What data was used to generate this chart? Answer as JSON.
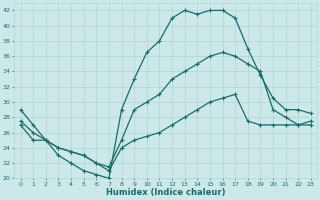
{
  "xlabel": "Humidex (Indice chaleur)",
  "background_color": "#cde8e8",
  "grid_color": "#aed4d4",
  "line_color": "#1a6b6b",
  "xlim": [
    -0.5,
    23.5
  ],
  "ylim": [
    20,
    43
  ],
  "xticks": [
    0,
    1,
    2,
    3,
    4,
    5,
    6,
    7,
    8,
    9,
    10,
    11,
    12,
    13,
    14,
    15,
    16,
    17,
    18,
    19,
    20,
    21,
    22,
    23
  ],
  "yticks": [
    20,
    22,
    24,
    26,
    28,
    30,
    32,
    34,
    36,
    38,
    40,
    42
  ],
  "line1_x": [
    0,
    1,
    2,
    3,
    4,
    5,
    6,
    7,
    8,
    9,
    10,
    11,
    12,
    13,
    14,
    15,
    16,
    17,
    18,
    19,
    20,
    21,
    22,
    23
  ],
  "line1_y": [
    29,
    27,
    25,
    23,
    22,
    21,
    20.5,
    20,
    29,
    33,
    36.5,
    38,
    41,
    42,
    41.5,
    42,
    42,
    41,
    37,
    33.5,
    30.5,
    29,
    29,
    28.5
  ],
  "line2_x": [
    0,
    1,
    2,
    3,
    4,
    5,
    6,
    7,
    8,
    9,
    10,
    11,
    12,
    13,
    14,
    15,
    16,
    17,
    18,
    19,
    20,
    21,
    22,
    23
  ],
  "line2_y": [
    27.5,
    26,
    25,
    24,
    23.5,
    23,
    22,
    21.5,
    25,
    29,
    30,
    31,
    33,
    34,
    35,
    36,
    36.5,
    36,
    35,
    34,
    29,
    28,
    27,
    27.5
  ],
  "line3_x": [
    0,
    1,
    2,
    3,
    4,
    5,
    6,
    7,
    8,
    9,
    10,
    11,
    12,
    13,
    14,
    15,
    16,
    17,
    18,
    19,
    20,
    21,
    22,
    23
  ],
  "line3_y": [
    27,
    25,
    25,
    24,
    23.5,
    23,
    22,
    21,
    24,
    25,
    25.5,
    26,
    27,
    28,
    29,
    30,
    30.5,
    31,
    27.5,
    27,
    27,
    27,
    27,
    27
  ]
}
